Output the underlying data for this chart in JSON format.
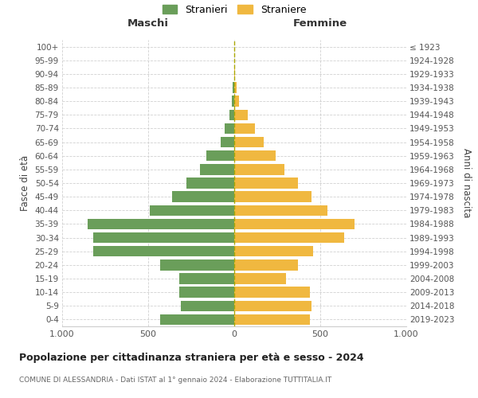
{
  "age_groups": [
    "0-4",
    "5-9",
    "10-14",
    "15-19",
    "20-24",
    "25-29",
    "30-34",
    "35-39",
    "40-44",
    "45-49",
    "50-54",
    "55-59",
    "60-64",
    "65-69",
    "70-74",
    "75-79",
    "80-84",
    "85-89",
    "90-94",
    "95-99",
    "100+"
  ],
  "birth_years": [
    "2019-2023",
    "2014-2018",
    "2009-2013",
    "2004-2008",
    "1999-2003",
    "1994-1998",
    "1989-1993",
    "1984-1988",
    "1979-1983",
    "1974-1978",
    "1969-1973",
    "1964-1968",
    "1959-1963",
    "1954-1958",
    "1949-1953",
    "1944-1948",
    "1939-1943",
    "1934-1938",
    "1929-1933",
    "1924-1928",
    "≤ 1923"
  ],
  "maschi": [
    430,
    310,
    320,
    320,
    430,
    820,
    820,
    850,
    490,
    360,
    280,
    200,
    160,
    80,
    55,
    30,
    15,
    8,
    0,
    0,
    0
  ],
  "femmine": [
    440,
    450,
    440,
    300,
    370,
    460,
    640,
    700,
    540,
    450,
    370,
    290,
    240,
    170,
    120,
    80,
    30,
    15,
    5,
    0,
    0
  ],
  "color_maschi": "#6a9e5a",
  "color_femmine": "#f0b840",
  "title": "Popolazione per cittadinanza straniera per età e sesso - 2024",
  "subtitle": "COMUNE DI ALESSANDRIA - Dati ISTAT al 1° gennaio 2024 - Elaborazione TUTTITALIA.IT",
  "label_maschi": "Maschi",
  "label_femmine": "Femmine",
  "ylabel_left": "Fasce di età",
  "ylabel_right": "Anni di nascita",
  "legend_maschi": "Stranieri",
  "legend_femmine": "Straniere",
  "xlim": 1000,
  "grid_color": "#cccccc"
}
